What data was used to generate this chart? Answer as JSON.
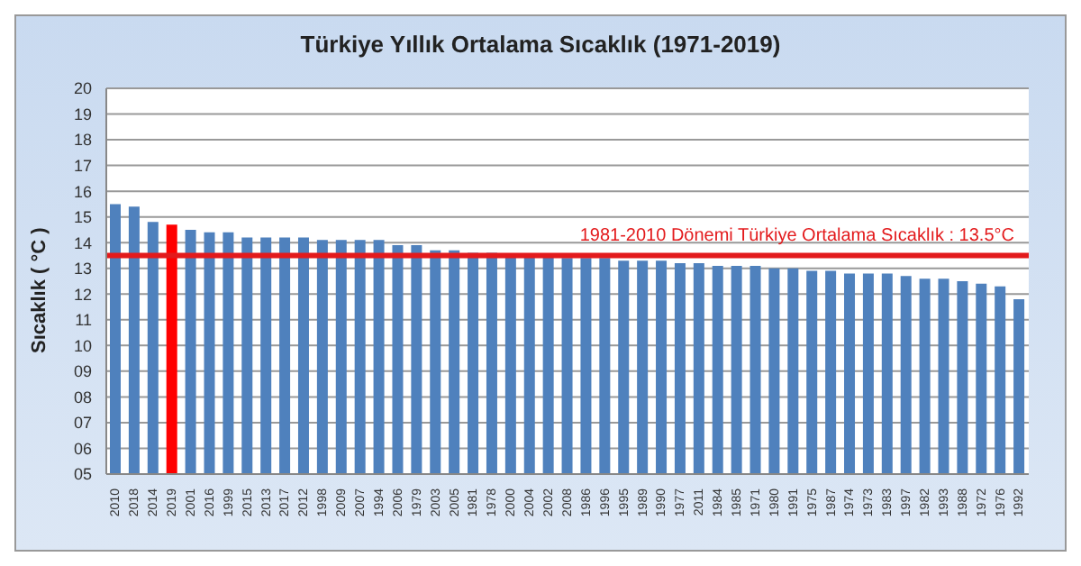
{
  "chart_data": {
    "type": "bar",
    "title": "Türkiye Yıllık Ortalama Sıcaklık (1971-2019)",
    "ylabel": "Sıcaklık ( °C )",
    "categories": [
      "2010",
      "2018",
      "2014",
      "2019",
      "2001",
      "2016",
      "1999",
      "2015",
      "2013",
      "2017",
      "2012",
      "1998",
      "2009",
      "2007",
      "1994",
      "2006",
      "1979",
      "2003",
      "2005",
      "1981",
      "1978",
      "2000",
      "2004",
      "2002",
      "2008",
      "1986",
      "1996",
      "1995",
      "1989",
      "1990",
      "1977",
      "2011",
      "1984",
      "1985",
      "1971",
      "1980",
      "1991",
      "1975",
      "1987",
      "1974",
      "1973",
      "1983",
      "1997",
      "1982",
      "1993",
      "1988",
      "1972",
      "1976",
      "1992"
    ],
    "values": [
      15.5,
      15.4,
      14.8,
      14.7,
      14.5,
      14.4,
      14.4,
      14.2,
      14.2,
      14.2,
      14.2,
      14.1,
      14.1,
      14.1,
      14.1,
      13.9,
      13.9,
      13.7,
      13.7,
      13.6,
      13.6,
      13.5,
      13.5,
      13.5,
      13.4,
      13.4,
      13.4,
      13.3,
      13.3,
      13.3,
      13.2,
      13.2,
      13.1,
      13.1,
      13.1,
      13.0,
      13.0,
      12.9,
      12.9,
      12.8,
      12.8,
      12.8,
      12.7,
      12.6,
      12.6,
      12.5,
      12.4,
      12.3,
      11.8
    ],
    "colors": [
      "#4f81bd",
      "#4f81bd",
      "#4f81bd",
      "#ff0000",
      "#4f81bd",
      "#4f81bd",
      "#4f81bd",
      "#4f81bd",
      "#4f81bd",
      "#4f81bd",
      "#4f81bd",
      "#4f81bd",
      "#4f81bd",
      "#4f81bd",
      "#4f81bd",
      "#4f81bd",
      "#4f81bd",
      "#4f81bd",
      "#4f81bd",
      "#4f81bd",
      "#4f81bd",
      "#4f81bd",
      "#4f81bd",
      "#4f81bd",
      "#4f81bd",
      "#4f81bd",
      "#4f81bd",
      "#4f81bd",
      "#4f81bd",
      "#4f81bd",
      "#4f81bd",
      "#4f81bd",
      "#4f81bd",
      "#4f81bd",
      "#4f81bd",
      "#4f81bd",
      "#4f81bd",
      "#4f81bd",
      "#4f81bd",
      "#4f81bd",
      "#4f81bd",
      "#4f81bd",
      "#4f81bd",
      "#4f81bd",
      "#4f81bd",
      "#4f81bd",
      "#4f81bd",
      "#4f81bd",
      "#4f81bd"
    ],
    "ylim": [
      5,
      20
    ],
    "yticks": [
      {
        "value": 5,
        "label": "05"
      },
      {
        "value": 6,
        "label": "06"
      },
      {
        "value": 7,
        "label": "07"
      },
      {
        "value": 8,
        "label": "08"
      },
      {
        "value": 9,
        "label": "09"
      },
      10,
      11,
      12,
      13,
      14,
      15,
      16,
      17,
      18,
      19,
      20
    ],
    "grid": "y",
    "ref_lines": [
      {
        "axis": "y",
        "value": 13.5,
        "label": "1981-2010 Dönemi  Türkiye Ortalama Sıcaklık : 13.5°C",
        "color": "#e31a1c"
      }
    ]
  }
}
